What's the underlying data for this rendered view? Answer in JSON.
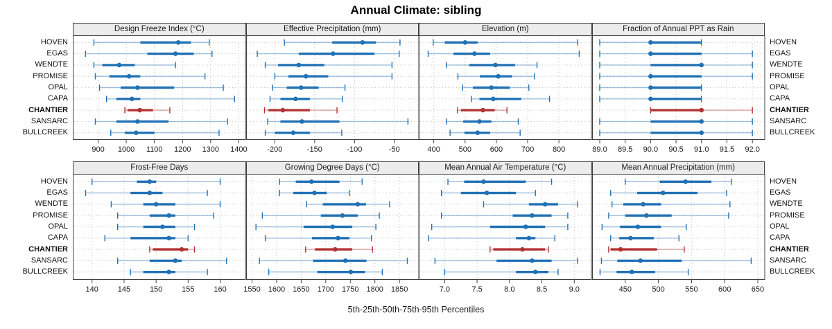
{
  "title": "Annual Climate: sibling",
  "caption": "5th-25th-50th-75th-95th Percentiles",
  "sites": [
    "HOVEN",
    "EGAS",
    "WENDTE",
    "PROMISE",
    "OPAL",
    "CAPA",
    "CHANTIER",
    "SANSARC",
    "BULLCREEK"
  ],
  "highlight_site": "CHANTIER",
  "colors": {
    "normal": "#2171b5",
    "normal_faint": "rgba(33,113,181,0.42)",
    "highlight": "#b23232",
    "highlight_faint": "rgba(178,50,50,0.45)",
    "header_bg": "#ececec",
    "panel_border": "#3f3f3f",
    "grid": "#c4c4c4",
    "tick_text": "#1a1a1a"
  },
  "chart_data": {
    "type": "error-bar-trellis",
    "note": "Each site row shows 5th-25th-50th-75th-95th percentiles; dot = median, thick bar = 25th-75th, thin whisker with end caps = 5th-95th.",
    "legend_position": "none",
    "grid": "dotted",
    "panels": [
      {
        "title": "Design Freeze Index (°C)",
        "row": 0,
        "col": 0,
        "axis_range": [
          810,
          1425
        ],
        "ticks": [
          900,
          1000,
          1100,
          1200,
          1300,
          1400
        ],
        "tick_labels": [
          "900",
          "1000",
          "1100",
          "1200",
          "1300",
          "1400"
        ],
        "values": {
          "HOVEN": [
            885,
            1050,
            1185,
            1230,
            1295
          ],
          "EGAS": [
            855,
            1075,
            1175,
            1240,
            1305
          ],
          "WENDTE": [
            885,
            915,
            975,
            1030,
            1175
          ],
          "PROMISE": [
            890,
            940,
            1010,
            1050,
            1280
          ],
          "OPAL": [
            905,
            980,
            1040,
            1170,
            1345
          ],
          "CAPA": [
            930,
            965,
            1020,
            1050,
            1385
          ],
          "CHANTIER": [
            995,
            1005,
            1048,
            1095,
            1155
          ],
          "SANSARC": [
            890,
            965,
            1040,
            1150,
            1360
          ],
          "BULLCREEK": [
            945,
            995,
            1035,
            1100,
            1330
          ]
        }
      },
      {
        "title": "Effective Precipitation (mm)",
        "row": 0,
        "col": 1,
        "axis_range": [
          -236,
          -19
        ],
        "ticks": [
          -200,
          -150,
          -100,
          -50
        ],
        "tick_labels": [
          "-200",
          "-150",
          "-100",
          "-50"
        ],
        "values": {
          "HOVEN": [
            -188,
            -128,
            -90,
            -73,
            -43
          ],
          "EGAS": [
            -222,
            -170,
            -127,
            -75,
            -44
          ],
          "WENDTE": [
            -212,
            -196,
            -170,
            -138,
            -53
          ],
          "PROMISE": [
            -200,
            -183,
            -161,
            -133,
            -53
          ],
          "OPAL": [
            -203,
            -185,
            -167,
            -145,
            -112
          ],
          "CAPA": [
            -206,
            -193,
            -174,
            -156,
            -115
          ],
          "CHANTIER": [
            -213,
            -208,
            -190,
            -156,
            -122
          ],
          "SANSARC": [
            -209,
            -193,
            -166,
            -119,
            -33
          ],
          "BULLCREEK": [
            -212,
            -200,
            -177,
            -156,
            -116
          ]
        }
      },
      {
        "title": "Elevation (m)",
        "row": 0,
        "col": 2,
        "axis_range": [
          352,
          905
        ],
        "ticks": [
          400,
          500,
          600,
          700,
          800
        ],
        "tick_labels": [
          "400",
          "500",
          "600",
          "700",
          "800"
        ],
        "values": {
          "HOVEN": [
            398,
            435,
            500,
            540,
            860
          ],
          "EGAS": [
            382,
            463,
            530,
            580,
            865
          ],
          "WENDTE": [
            440,
            513,
            597,
            660,
            730
          ],
          "PROMISE": [
            477,
            547,
            606,
            650,
            722
          ],
          "OPAL": [
            492,
            525,
            584,
            643,
            704
          ],
          "CAPA": [
            520,
            546,
            590,
            680,
            770
          ],
          "CHANTIER": [
            476,
            487,
            557,
            595,
            634
          ],
          "SANSARC": [
            440,
            494,
            546,
            584,
            670
          ],
          "BULLCREEK": [
            452,
            498,
            540,
            580,
            676
          ]
        }
      },
      {
        "title": "Fraction of Annual PPT as Rain",
        "row": 0,
        "col": 3,
        "axis_range": [
          88.85,
          92.25
        ],
        "ticks": [
          89.0,
          89.5,
          90.0,
          90.5,
          91.0,
          91.5,
          92.0
        ],
        "tick_labels": [
          "89.0",
          "89.5",
          "90.0",
          "90.5",
          "91.0",
          "91.5",
          "92.0"
        ],
        "values": {
          "HOVEN": [
            89,
            90,
            90,
            91,
            91
          ],
          "EGAS": [
            89,
            90,
            90,
            91,
            92
          ],
          "WENDTE": [
            89,
            90,
            91,
            91,
            92
          ],
          "PROMISE": [
            89,
            90,
            90,
            91,
            92
          ],
          "OPAL": [
            89,
            90,
            90,
            91,
            91
          ],
          "CAPA": [
            89,
            90,
            90,
            91,
            91
          ],
          "CHANTIER": [
            90,
            90,
            91,
            91,
            92
          ],
          "SANSARC": [
            89,
            90,
            91,
            91,
            92
          ],
          "BULLCREEK": [
            89,
            90,
            91,
            91,
            92
          ]
        }
      },
      {
        "title": "Frost-Free Days",
        "row": 1,
        "col": 0,
        "axis_range": [
          137,
          164
        ],
        "ticks": [
          140,
          145,
          150,
          155,
          160
        ],
        "tick_labels": [
          "140",
          "145",
          "150",
          "155",
          "160"
        ],
        "values": {
          "HOVEN": [
            140,
            147,
            149,
            150,
            160
          ],
          "EGAS": [
            139,
            146,
            149,
            151,
            158
          ],
          "WENDTE": [
            143,
            148,
            150,
            153,
            160
          ],
          "PROMISE": [
            144,
            149,
            152,
            153,
            159
          ],
          "OPAL": [
            144,
            148,
            151,
            153,
            156
          ],
          "CAPA": [
            142,
            146,
            152,
            153,
            155
          ],
          "CHANTIER": [
            149,
            149.5,
            154,
            155,
            156
          ],
          "SANSARC": [
            144,
            149,
            153,
            154,
            161
          ],
          "BULLCREEK": [
            146,
            148,
            152,
            153,
            158
          ]
        }
      },
      {
        "title": "Growing Degree Days (°C)",
        "row": 1,
        "col": 1,
        "axis_range": [
          1538,
          1890
        ],
        "ticks": [
          1550,
          1600,
          1650,
          1700,
          1750,
          1800,
          1850
        ],
        "tick_labels": [
          "1550",
          "1600",
          "1650",
          "1700",
          "1750",
          "1800",
          "1850"
        ],
        "values": {
          "HOVEN": [
            1606,
            1639,
            1671,
            1728,
            1774
          ],
          "EGAS": [
            1606,
            1634,
            1677,
            1702,
            1748
          ],
          "WENDTE": [
            1661,
            1694,
            1765,
            1782,
            1830
          ],
          "PROMISE": [
            1571,
            1690,
            1734,
            1765,
            1809
          ],
          "OPAL": [
            1558,
            1655,
            1714,
            1754,
            1802
          ],
          "CAPA": [
            1577,
            1672,
            1725,
            1748,
            1793
          ],
          "CHANTIER": [
            1659,
            1678,
            1719,
            1754,
            1795
          ],
          "SANSARC": [
            1565,
            1674,
            1740,
            1783,
            1866
          ],
          "BULLCREEK": [
            1584,
            1683,
            1751,
            1780,
            1815
          ]
        }
      },
      {
        "title": "Mean Annual Air Temperature (°C)",
        "row": 1,
        "col": 2,
        "axis_range": [
          6.6,
          9.27
        ],
        "ticks": [
          7.0,
          7.5,
          8.0,
          8.5,
          9.0
        ],
        "tick_labels": [
          "7.0",
          "7.5",
          "8.0",
          "8.5",
          "9.0"
        ],
        "values": {
          "HOVEN": [
            7.05,
            7.3,
            7.6,
            8.25,
            8.65
          ],
          "EGAS": [
            6.95,
            7.25,
            7.65,
            8.1,
            8.4
          ],
          "WENDTE": [
            7.6,
            8.3,
            8.55,
            8.75,
            9.05
          ],
          "PROMISE": [
            6.95,
            8.05,
            8.35,
            8.65,
            8.9
          ],
          "OPAL": [
            6.8,
            7.7,
            8.25,
            8.55,
            8.9
          ],
          "CAPA": [
            6.75,
            8.1,
            8.3,
            8.4,
            8.7
          ],
          "CHANTIER": [
            7.7,
            7.75,
            8.2,
            8.55,
            8.6
          ],
          "SANSARC": [
            6.85,
            7.8,
            8.35,
            8.65,
            9.05
          ],
          "BULLCREEK": [
            7.0,
            8.1,
            8.4,
            8.6,
            8.75
          ]
        }
      },
      {
        "title": "Mean Annual Precipitation (mm)",
        "row": 1,
        "col": 3,
        "axis_range": [
          400,
          661
        ],
        "ticks": [
          450,
          500,
          550,
          600,
          650
        ],
        "tick_labels": [
          "450",
          "500",
          "550",
          "600",
          "650"
        ],
        "values": {
          "HOVEN": [
            450,
            502,
            541,
            580,
            610
          ],
          "EGAS": [
            428,
            468,
            507,
            559,
            603
          ],
          "WENDTE": [
            430,
            447,
            477,
            504,
            608
          ],
          "PROMISE": [
            425,
            450,
            482,
            520,
            606
          ],
          "OPAL": [
            415,
            442,
            469,
            504,
            542
          ],
          "CAPA": [
            428,
            441,
            458,
            493,
            531
          ],
          "CHANTIER": [
            425,
            428,
            443,
            498,
            539
          ],
          "SANSARC": [
            414,
            438,
            473,
            535,
            640
          ],
          "BULLCREEK": [
            412,
            437,
            460,
            495,
            545
          ]
        }
      }
    ]
  }
}
